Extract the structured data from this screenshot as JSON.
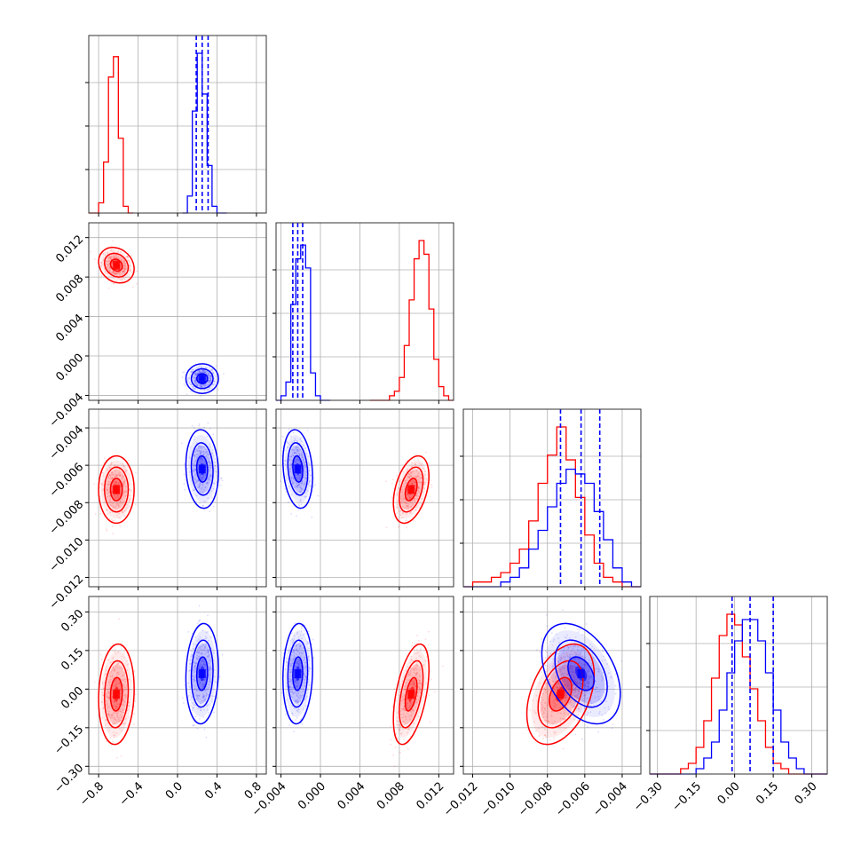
{
  "colors": {
    "red": "#ff0000",
    "blue": "#0000ff",
    "grid": "#b0b0b0",
    "frame": "#333333"
  },
  "chart_data": {
    "type": "corner",
    "parameters": [
      {
        "range": [
          -0.9,
          0.9
        ],
        "ticks": [
          -0.8,
          -0.4,
          0.0,
          0.4,
          0.8
        ],
        "tick_labels": [
          "−0.8",
          "−0.4",
          "0.0",
          "0.4",
          "0.8"
        ]
      },
      {
        "range": [
          -0.0045,
          0.0135
        ],
        "ticks": [
          -0.004,
          0.0,
          0.004,
          0.008,
          0.012
        ],
        "tick_labels": [
          "−0.004",
          "0.000",
          "0.004",
          "0.008",
          "0.012"
        ]
      },
      {
        "range": [
          -0.0125,
          -0.003
        ],
        "ticks": [
          -0.012,
          -0.01,
          -0.008,
          -0.006,
          -0.004
        ],
        "tick_labels": [
          "−0.012",
          "−0.010",
          "−0.008",
          "−0.006",
          "−0.004"
        ]
      },
      {
        "range": [
          -0.33,
          0.36
        ],
        "ticks": [
          -0.3,
          -0.15,
          0.0,
          0.15,
          0.3
        ],
        "tick_labels": [
          "−0.30",
          "−0.15",
          "0.00",
          "0.15",
          "0.30"
        ]
      }
    ],
    "grid": true,
    "series": [
      {
        "color": "#ff0000",
        "mean": [
          -0.62,
          0.0092,
          -0.0073,
          -0.02
        ],
        "std": [
          0.06,
          0.0006,
          0.0006,
          0.065
        ],
        "corr": [
          [
            0,
            1,
            -0.2
          ],
          [
            0,
            2,
            0.0
          ],
          [
            0,
            3,
            0.1
          ],
          [
            1,
            2,
            0.4
          ],
          [
            1,
            3,
            0.5
          ],
          [
            2,
            3,
            0.4
          ]
        ],
        "quantiles": null,
        "hist": [
          {
            "edges": [
              -0.9,
              -0.85,
              -0.8,
              -0.75,
              -0.7,
              -0.65,
              -0.6,
              -0.55,
              -0.5,
              -0.45
            ],
            "values": [
              0,
              0,
              3,
              15,
              40,
              46,
              22,
              2,
              0
            ]
          },
          {
            "edges": [
              0.005,
              0.0055,
              0.006,
              0.0065,
              0.007,
              0.0075,
              0.008,
              0.0085,
              0.009,
              0.0095,
              0.01,
              0.0105,
              0.011,
              0.0115,
              0.012,
              0.0125,
              0.013,
              0.0135
            ],
            "values": [
              0,
              0,
              0,
              0,
              1,
              2,
              5,
              12,
              22,
              31,
              35,
              32,
              20,
              9,
              3,
              1,
              0
            ]
          },
          {
            "edges": [
              -0.0125,
              -0.012,
              -0.0115,
              -0.011,
              -0.0105,
              -0.01,
              -0.0095,
              -0.009,
              -0.0085,
              -0.008,
              -0.0075,
              -0.007,
              -0.0065,
              -0.006,
              -0.0055,
              -0.005,
              -0.0045,
              -0.004,
              -0.0035,
              -0.003
            ],
            "values": [
              0,
              1,
              1,
              2,
              3,
              5,
              8,
              14,
              22,
              28,
              34,
              27,
              19,
              11,
              5,
              2,
              1,
              0,
              0
            ]
          },
          {
            "edges": [
              -0.33,
              -0.3,
              -0.27,
              -0.24,
              -0.21,
              -0.18,
              -0.15,
              -0.12,
              -0.09,
              -0.06,
              -0.03,
              0.0,
              0.03,
              0.06,
              0.09,
              0.12,
              0.15,
              0.18,
              0.21,
              0.24,
              0.27,
              0.3,
              0.33,
              0.36
            ],
            "values": [
              0,
              0,
              0,
              0,
              1,
              2,
              5,
              10,
              18,
              26,
              30,
              28,
              22,
              16,
              10,
              5,
              2,
              1,
              0,
              0,
              0,
              0,
              0
            ]
          }
        ]
      },
      {
        "color": "#0000ff",
        "mean": [
          0.25,
          -0.0023,
          -0.0062,
          0.06
        ],
        "std": [
          0.055,
          0.0005,
          0.0007,
          0.065
        ],
        "corr": [
          [
            0,
            1,
            0.0
          ],
          [
            0,
            2,
            -0.1
          ],
          [
            0,
            3,
            0.1
          ],
          [
            1,
            2,
            -0.2
          ],
          [
            1,
            3,
            0.1
          ],
          [
            2,
            3,
            -0.4
          ]
        ],
        "quantiles": [
          [
            0.19,
            0.25,
            0.31
          ],
          [
            -0.0028,
            -0.0023,
            -0.0018
          ],
          [
            -0.0073,
            -0.0062,
            -0.0052
          ],
          [
            -0.01,
            0.06,
            0.15
          ]
        ],
        "hist": [
          {
            "edges": [
              0.05,
              0.1,
              0.15,
              0.2,
              0.25,
              0.3,
              0.35,
              0.4,
              0.45,
              0.5
            ],
            "values": [
              0,
              5,
              30,
              47,
              35,
              14,
              2,
              0,
              0
            ]
          },
          {
            "edges": [
              -0.0045,
              -0.004,
              -0.0035,
              -0.003,
              -0.0025,
              -0.002,
              -0.0015,
              -0.001,
              -0.0005,
              0.0,
              0.0005,
              0.001
            ],
            "values": [
              0,
              1,
              4,
              21,
              31,
              34,
              29,
              6,
              1,
              0,
              0
            ]
          },
          {
            "edges": [
              -0.0125,
              -0.012,
              -0.0115,
              -0.011,
              -0.0105,
              -0.01,
              -0.0095,
              -0.009,
              -0.0085,
              -0.008,
              -0.0075,
              -0.007,
              -0.0065,
              -0.006,
              -0.0055,
              -0.005,
              -0.0045,
              -0.004,
              -0.0035,
              -0.003
            ],
            "values": [
              0,
              0,
              0,
              0,
              1,
              2,
              4,
              8,
              12,
              17,
              22,
              25,
              24,
              22,
              16,
              10,
              4,
              1,
              0
            ]
          },
          {
            "edges": [
              -0.33,
              -0.3,
              -0.27,
              -0.24,
              -0.21,
              -0.18,
              -0.15,
              -0.12,
              -0.09,
              -0.06,
              -0.03,
              0.0,
              0.03,
              0.06,
              0.09,
              0.12,
              0.15,
              0.18,
              0.21,
              0.24,
              0.27,
              0.3,
              0.33,
              0.36
            ],
            "values": [
              0,
              0,
              0,
              0,
              0,
              0,
              1,
              3,
              6,
              12,
              19,
              25,
              29,
              29,
              25,
              19,
              12,
              6,
              3,
              1,
              0,
              0,
              0
            ]
          }
        ]
      }
    ]
  }
}
